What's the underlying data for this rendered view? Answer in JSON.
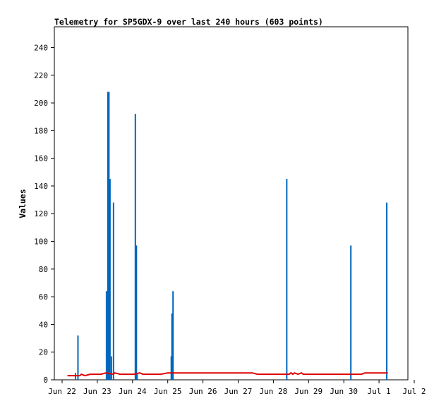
{
  "chart_data": {
    "type": "bar",
    "title": "Telemetry for SP5GDX-9 over last 240 hours (603 points)",
    "xlabel": "",
    "ylabel": "Values",
    "ylim": [
      0,
      255
    ],
    "xlim": [
      "Jun 22",
      "Jul 2"
    ],
    "yticks": [
      0,
      20,
      40,
      60,
      80,
      100,
      120,
      140,
      160,
      180,
      200,
      220,
      240
    ],
    "xticks": [
      "Jun 22",
      "Jun 23",
      "Jun 24",
      "Jun 25",
      "Jun 26",
      "Jun 27",
      "Jun 28",
      "Jun 29",
      "Jun 30",
      "Jul 1",
      "Jul 2"
    ],
    "grid": false,
    "legend": "none",
    "series": [
      {
        "type": "bar",
        "color": "#0066bb",
        "points": [
          {
            "day": 0.38,
            "value": 5
          },
          {
            "day": 0.45,
            "value": 32
          },
          {
            "day": 1.26,
            "value": 64
          },
          {
            "day": 1.3,
            "value": 208
          },
          {
            "day": 1.33,
            "value": 208
          },
          {
            "day": 1.36,
            "value": 145
          },
          {
            "day": 1.4,
            "value": 17
          },
          {
            "day": 1.46,
            "value": 128
          },
          {
            "day": 2.08,
            "value": 192
          },
          {
            "day": 2.11,
            "value": 97
          },
          {
            "day": 2.13,
            "value": 5
          },
          {
            "day": 3.1,
            "value": 17
          },
          {
            "day": 3.12,
            "value": 48
          },
          {
            "day": 3.15,
            "value": 64
          },
          {
            "day": 6.38,
            "value": 145
          },
          {
            "day": 8.2,
            "value": 97
          },
          {
            "day": 9.22,
            "value": 128
          }
        ]
      },
      {
        "type": "line",
        "color": "#dd0000",
        "points": [
          {
            "day": 0.15,
            "value": 3
          },
          {
            "day": 0.5,
            "value": 3
          },
          {
            "day": 0.55,
            "value": 4
          },
          {
            "day": 0.65,
            "value": 3
          },
          {
            "day": 0.8,
            "value": 4
          },
          {
            "day": 1.1,
            "value": 4
          },
          {
            "day": 1.25,
            "value": 5
          },
          {
            "day": 1.45,
            "value": 4
          },
          {
            "day": 1.5,
            "value": 5
          },
          {
            "day": 1.65,
            "value": 4
          },
          {
            "day": 2.05,
            "value": 4
          },
          {
            "day": 2.2,
            "value": 5
          },
          {
            "day": 2.3,
            "value": 4
          },
          {
            "day": 2.8,
            "value": 4
          },
          {
            "day": 3.0,
            "value": 5
          },
          {
            "day": 5.4,
            "value": 5
          },
          {
            "day": 5.55,
            "value": 4
          },
          {
            "day": 6.45,
            "value": 4
          },
          {
            "day": 6.5,
            "value": 5
          },
          {
            "day": 6.55,
            "value": 4
          },
          {
            "day": 6.6,
            "value": 5
          },
          {
            "day": 6.7,
            "value": 4
          },
          {
            "day": 6.8,
            "value": 5
          },
          {
            "day": 6.85,
            "value": 4
          },
          {
            "day": 8.5,
            "value": 4
          },
          {
            "day": 8.6,
            "value": 5
          },
          {
            "day": 9.1,
            "value": 5
          },
          {
            "day": 9.25,
            "value": 5
          }
        ]
      }
    ]
  }
}
